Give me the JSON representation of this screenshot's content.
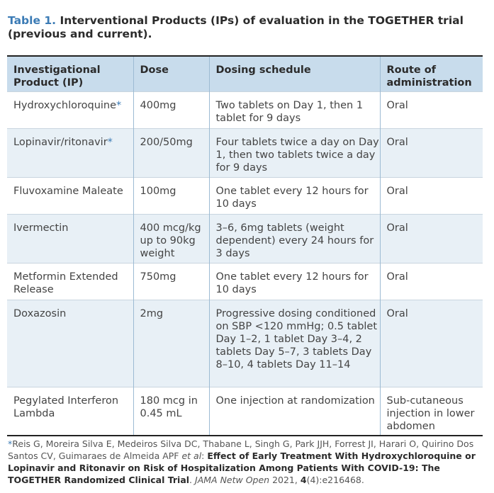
{
  "caption": {
    "label": "Table 1.",
    "title": "Interventional Products (IPs) of evaluation in the TOGETHER trial (previous and current)."
  },
  "table": {
    "headers": [
      "Investigational Product (IP)",
      "Dose",
      "Dosing schedule",
      "Route of administration"
    ],
    "rows": [
      {
        "product": "Hydroxychloroquine",
        "marker": "*",
        "dose": "400mg",
        "schedule": "Two tablets on Day 1, then 1 tablet for 9 days",
        "route": "Oral"
      },
      {
        "product": "Lopinavir/ritonavir",
        "marker": "*",
        "dose": "200/50mg",
        "schedule": "Four tablets twice a day on Day 1, then two tablets twice a day for 9 days",
        "route": "Oral"
      },
      {
        "product": "Fluvoxamine Maleate",
        "marker": "",
        "dose": "100mg",
        "schedule": "One tablet every 12 hours for 10 days",
        "route": "Oral"
      },
      {
        "product": "Ivermectin",
        "marker": "",
        "dose": "400 mcg/kg up to 90kg weight",
        "schedule": "3–6, 6mg tablets (weight dependent) every 24 hours for 3 days",
        "route": "Oral"
      },
      {
        "product": "Metformin Extended Release",
        "marker": "",
        "dose": "750mg",
        "schedule": "One tablet every 12 hours for 10 days",
        "route": "Oral"
      },
      {
        "product": "Doxazosin",
        "marker": "",
        "dose": "2mg",
        "schedule": "Progressive dosing conditioned on SBP <120 mmHg; 0.5 tablet Day 1–2, 1 tablet Day 3–4, 2 tablets Day 5–7, 3 tablets Day 8–10, 4 tablets Day 11–14",
        "route": "Oral"
      },
      {
        "product": "Pegylated Interferon Lambda",
        "marker": "",
        "dose": "180 mcg in 0.45 mL",
        "schedule": "One injection at randomization",
        "route": "Sub-cutaneous injection in lower abdomen"
      }
    ]
  },
  "footnote": {
    "marker": "*",
    "authors": "Reis G, Moreira Silva E, Medeiros Silva DC, Thabane L, Singh G, Park JJH, Forrest JI, Harari O, Quirino Dos Santos CV, Guimaraes de Almeida APF",
    "etal": "et al",
    "sep": ":",
    "article_title": "Effect of Early Treatment With Hydroxychloroquine or Lopinavir and Ritonavir on Risk of Hospitalization Among Patients With COVID-19: The TOGETHER Randomized Clinical Trial",
    "period": ".",
    "journal": "JAMA Netw Open",
    "year": "2021,",
    "volume": "4",
    "issue_page": "(4):e216468."
  }
}
